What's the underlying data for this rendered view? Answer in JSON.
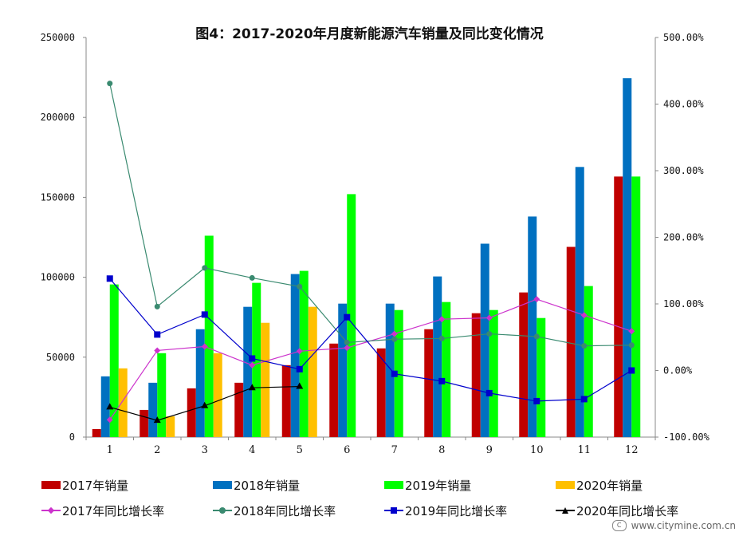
{
  "title": "图4：2017-2020年月度新能源汽车销量及同比变化情况",
  "watermark": "www.citymine.com.cn",
  "chart_data": {
    "type": "bar+line",
    "title": "图4：2017-2020年月度新能源汽车销量及同比变化情况",
    "xlabel": "",
    "ylabel": "",
    "categories": [
      "1",
      "2",
      "3",
      "4",
      "5",
      "6",
      "7",
      "8",
      "9",
      "10",
      "11",
      "12"
    ],
    "y_left": {
      "range": [
        0,
        250000
      ],
      "ticks": [
        "0",
        "50000",
        "100000",
        "150000",
        "200000",
        "250000"
      ]
    },
    "y_right": {
      "range": [
        -100,
        500
      ],
      "ticks": [
        "-100.00%",
        "0.00%",
        "100.00%",
        "200.00%",
        "300.00%",
        "400.00%",
        "500.00%"
      ]
    },
    "grid": false,
    "legend_position": "bottom",
    "bar_series": [
      {
        "name": "2017年销量",
        "color": "#c00000",
        "values": [
          5000,
          17000,
          30500,
          34000,
          45000,
          58500,
          55500,
          67500,
          77500,
          90500,
          119000,
          163000
        ]
      },
      {
        "name": "2018年销量",
        "color": "#0070c0",
        "values": [
          38000,
          34000,
          67500,
          81500,
          102000,
          83500,
          83500,
          100500,
          121000,
          138000,
          169000,
          224500
        ]
      },
      {
        "name": "2019年销量",
        "color": "#00ff00",
        "values": [
          95500,
          52500,
          126000,
          96500,
          104000,
          152000,
          79500,
          84500,
          79500,
          74500,
          94500,
          163000
        ]
      },
      {
        "name": "2020年销量",
        "color": "#ffc000",
        "values": [
          43000,
          13000,
          52500,
          71500,
          81500,
          null,
          null,
          null,
          null,
          null,
          null,
          null
        ]
      }
    ],
    "line_series": [
      {
        "name": "2017年同比增长率",
        "color": "#cc33cc",
        "marker": "diamond",
        "axis": "right",
        "values": [
          -74,
          30,
          36,
          8,
          29,
          34,
          55,
          77,
          79,
          107,
          83,
          59
        ]
      },
      {
        "name": "2018年同比增长率",
        "color": "#3a8a70",
        "marker": "circle",
        "axis": "right",
        "values": [
          431,
          96,
          154,
          139,
          126,
          42,
          47,
          48,
          55,
          51,
          37,
          38
        ]
      },
      {
        "name": "2019年同比增长率",
        "color": "#0000cc",
        "marker": "square",
        "axis": "right",
        "values": [
          138,
          54,
          84,
          18,
          2,
          80,
          -5,
          -16,
          -34,
          -46,
          -43,
          0
        ]
      },
      {
        "name": "2020年同比增长率",
        "color": "#000000",
        "marker": "triangle",
        "axis": "right",
        "values": [
          -55,
          -75,
          -53,
          -26,
          -24,
          null,
          null,
          null,
          null,
          null,
          null,
          null
        ]
      }
    ]
  },
  "legend": {
    "bars": [
      {
        "label": "2017年销量",
        "color": "#c00000"
      },
      {
        "label": "2018年销量",
        "color": "#0070c0"
      },
      {
        "label": "2019年销量",
        "color": "#00ff00"
      },
      {
        "label": "2020年销量",
        "color": "#ffc000"
      }
    ],
    "lines": [
      {
        "label": "2017年同比增长率",
        "color": "#cc33cc",
        "marker": "diamond"
      },
      {
        "label": "2018年同比增长率",
        "color": "#3a8a70",
        "marker": "circle"
      },
      {
        "label": "2019年同比增长率",
        "color": "#0000cc",
        "marker": "square"
      },
      {
        "label": "2020年同比增长率",
        "color": "#000000",
        "marker": "triangle"
      }
    ]
  }
}
